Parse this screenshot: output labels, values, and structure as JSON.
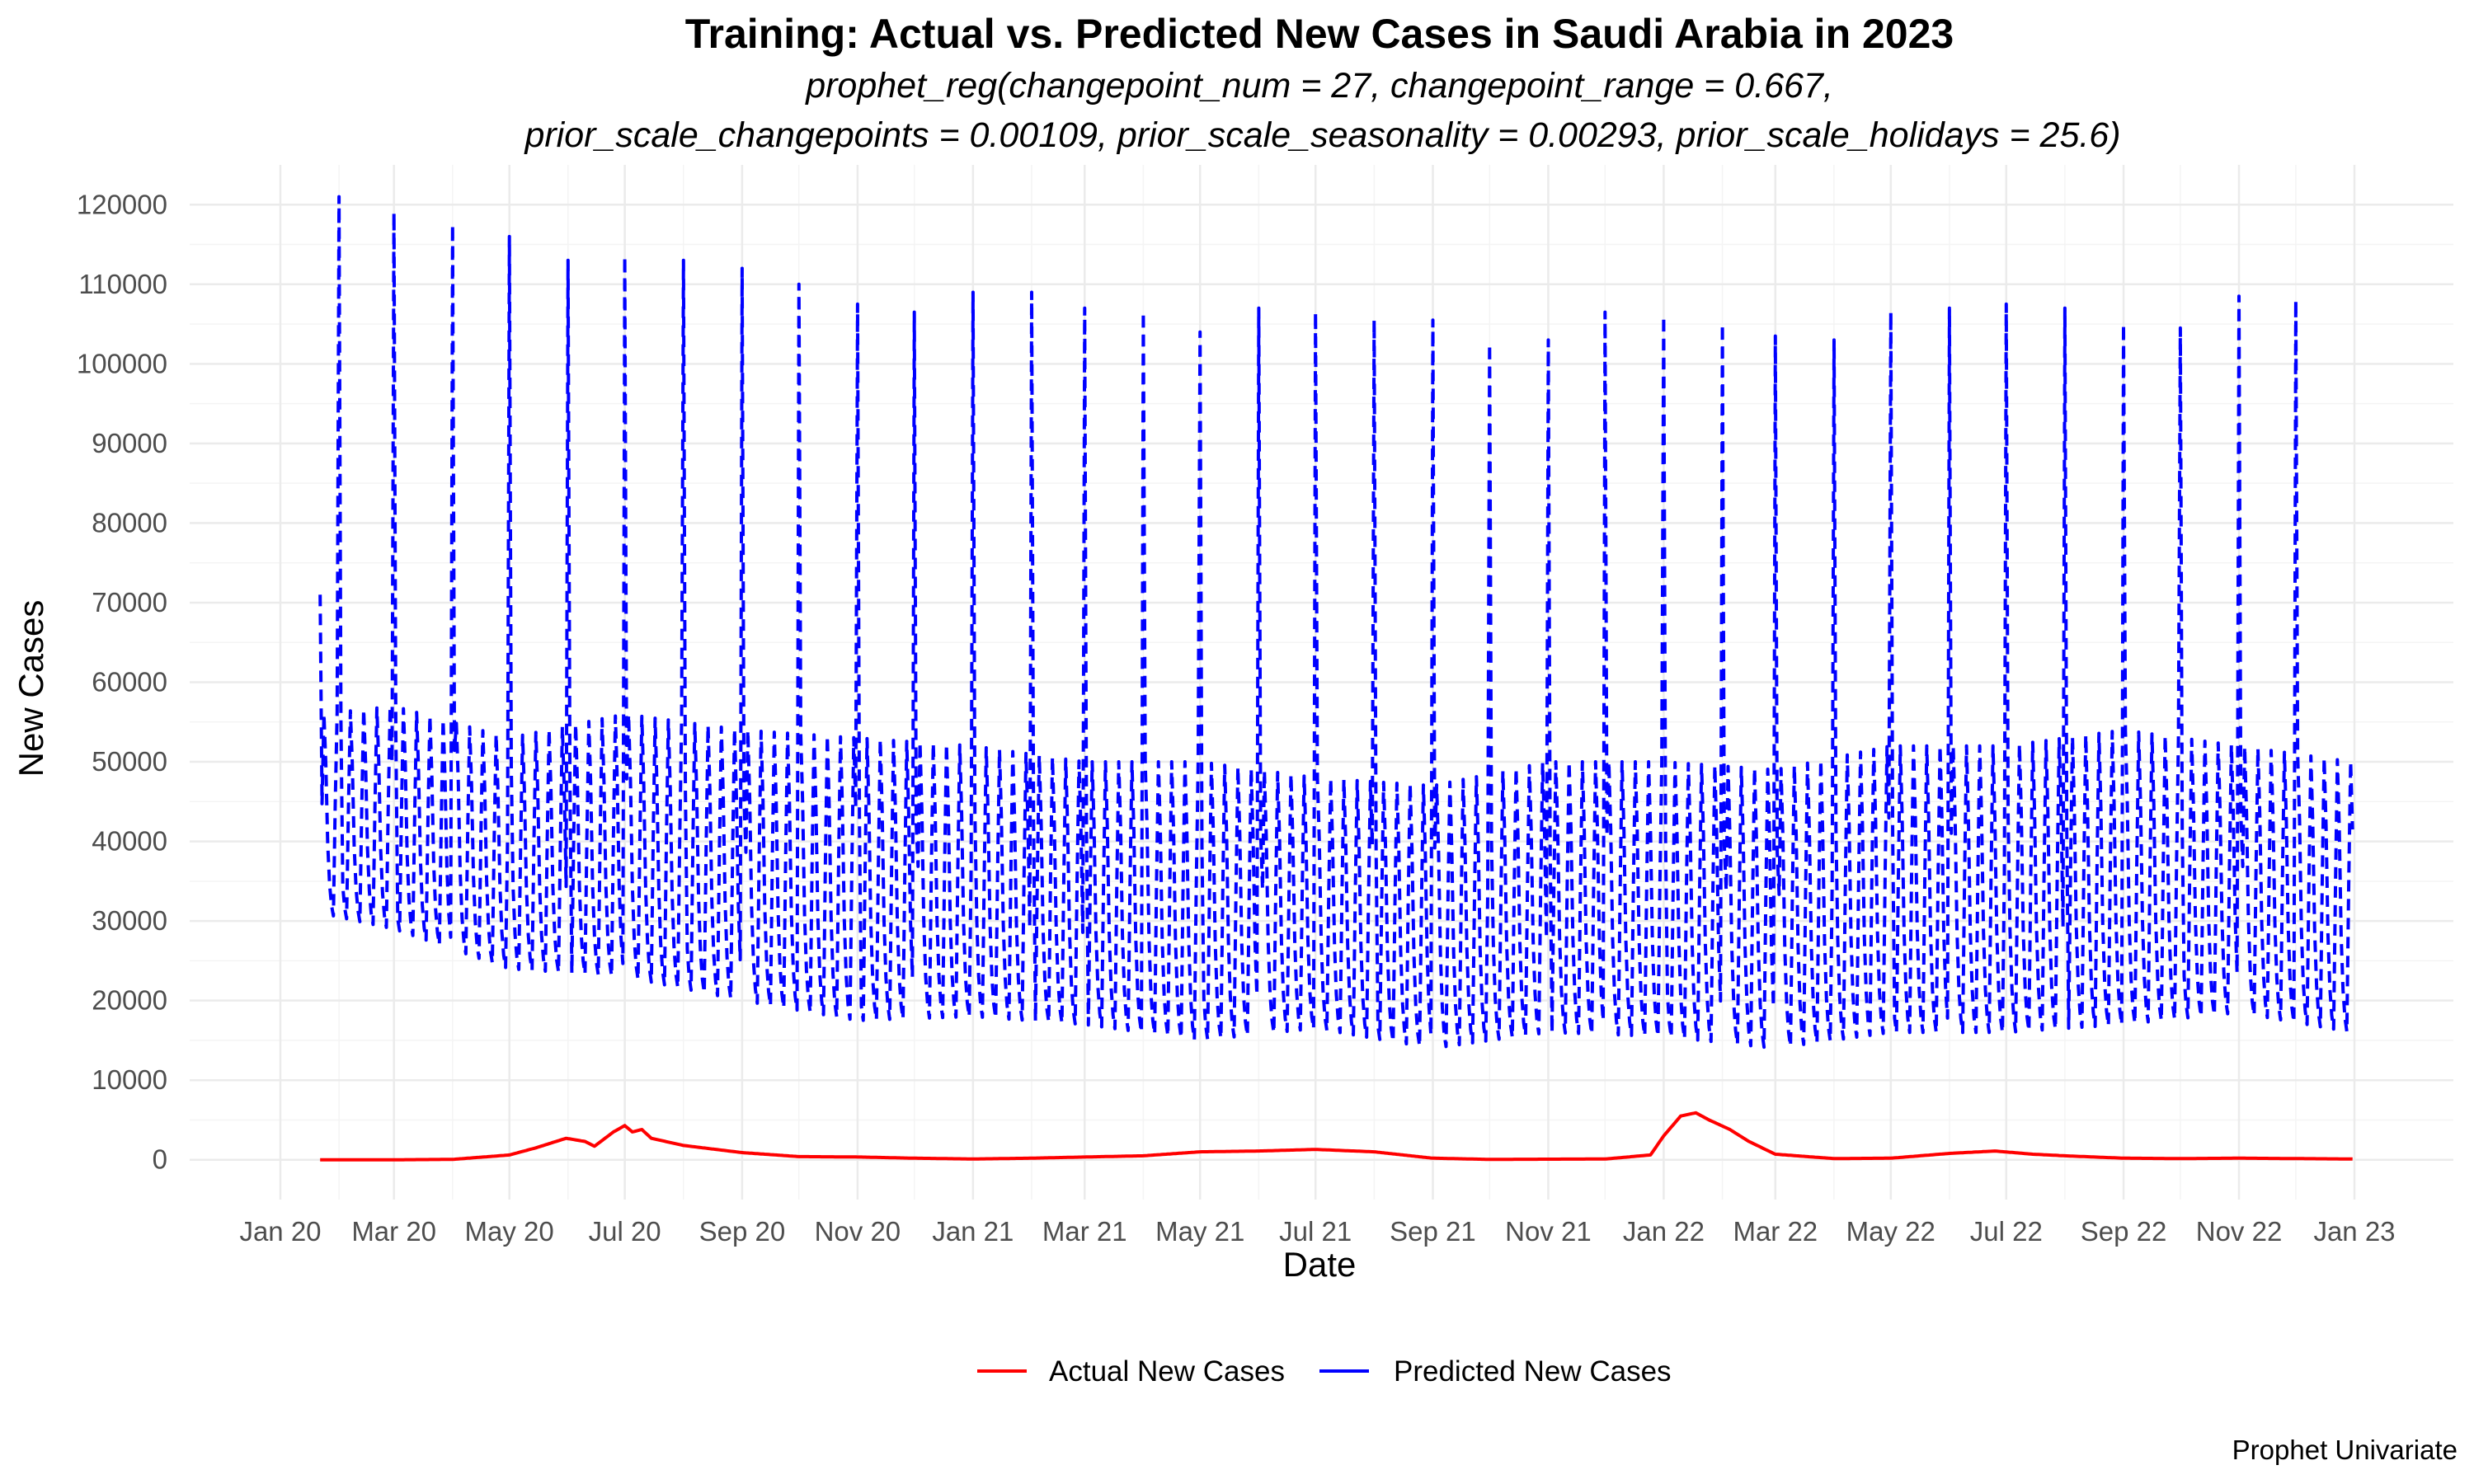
{
  "chart_data": {
    "type": "line",
    "title": "Training: Actual vs. Predicted New Cases in Saudi Arabia in 2023",
    "subtitle_lines": [
      "prophet_reg(changepoint_num = 27, changepoint_range = 0.667,",
      "prior_scale_changepoints = 0.00109, prior_scale_seasonality = 0.00293, prior_scale_holidays = 25.6)"
    ],
    "xlabel": "Date",
    "ylabel": "New Cases",
    "caption": "Prophet Univariate",
    "x_ticks": [
      "Jan 20",
      "Mar 20",
      "May 20",
      "Jul 20",
      "Sep 20",
      "Nov 20",
      "Jan 21",
      "Mar 21",
      "May 21",
      "Jul 21",
      "Sep 21",
      "Nov 21",
      "Jan 22",
      "Mar 22",
      "May 22",
      "Jul 22",
      "Sep 22",
      "Nov 22",
      "Jan 23"
    ],
    "y_ticks": [
      "0",
      "10000",
      "20000",
      "30000",
      "40000",
      "50000",
      "60000",
      "70000",
      "80000",
      "90000",
      "100000",
      "110000",
      "120000"
    ],
    "ylim": [
      -5000,
      125000
    ],
    "grid": true,
    "legend_position": "bottom",
    "series": [
      {
        "name": "Actual New Cases",
        "color": "#ff0000",
        "linestyle": "solid",
        "points": [
          [
            "2020-01-22",
            0
          ],
          [
            "2020-03-01",
            0
          ],
          [
            "2020-04-01",
            50
          ],
          [
            "2020-05-01",
            600
          ],
          [
            "2020-05-15",
            1500
          ],
          [
            "2020-05-31",
            2700
          ],
          [
            "2020-06-10",
            2300
          ],
          [
            "2020-06-15",
            1700
          ],
          [
            "2020-06-25",
            3500
          ],
          [
            "2020-07-01",
            4300
          ],
          [
            "2020-07-05",
            3500
          ],
          [
            "2020-07-10",
            3800
          ],
          [
            "2020-07-15",
            2700
          ],
          [
            "2020-08-01",
            1800
          ],
          [
            "2020-09-01",
            900
          ],
          [
            "2020-10-01",
            400
          ],
          [
            "2020-11-01",
            350
          ],
          [
            "2020-12-01",
            200
          ],
          [
            "2021-01-01",
            100
          ],
          [
            "2021-02-01",
            200
          ],
          [
            "2021-03-01",
            350
          ],
          [
            "2021-04-01",
            500
          ],
          [
            "2021-05-01",
            1000
          ],
          [
            "2021-06-01",
            1100
          ],
          [
            "2021-07-01",
            1300
          ],
          [
            "2021-08-01",
            1000
          ],
          [
            "2021-09-01",
            200
          ],
          [
            "2021-10-01",
            50
          ],
          [
            "2021-12-01",
            100
          ],
          [
            "2021-12-25",
            600
          ],
          [
            "2022-01-01",
            3000
          ],
          [
            "2022-01-10",
            5500
          ],
          [
            "2022-01-18",
            5900
          ],
          [
            "2022-01-25",
            5000
          ],
          [
            "2022-02-05",
            3800
          ],
          [
            "2022-02-15",
            2300
          ],
          [
            "2022-03-01",
            700
          ],
          [
            "2022-04-01",
            150
          ],
          [
            "2022-05-01",
            200
          ],
          [
            "2022-06-01",
            800
          ],
          [
            "2022-06-25",
            1100
          ],
          [
            "2022-07-15",
            700
          ],
          [
            "2022-08-01",
            500
          ],
          [
            "2022-09-01",
            200
          ],
          [
            "2022-10-01",
            150
          ],
          [
            "2022-11-01",
            200
          ],
          [
            "2022-12-01",
            150
          ],
          [
            "2022-12-31",
            100
          ]
        ]
      },
      {
        "name": "Predicted New Cases",
        "color": "#0000ff",
        "linestyle": "dashed",
        "weekly_trough": [
          [
            "2020-01-22",
            31000
          ],
          [
            "2020-03-01",
            29000
          ],
          [
            "2020-05-01",
            24000
          ],
          [
            "2020-07-01",
            23000
          ],
          [
            "2020-09-01",
            20000
          ],
          [
            "2020-11-01",
            17500
          ],
          [
            "2021-01-01",
            18000
          ],
          [
            "2021-03-01",
            17000
          ],
          [
            "2021-05-01",
            15000
          ],
          [
            "2021-07-01",
            16500
          ],
          [
            "2021-09-01",
            14000
          ],
          [
            "2021-11-01",
            16000
          ],
          [
            "2022-01-01",
            15500
          ],
          [
            "2022-03-01",
            14000
          ],
          [
            "2022-05-01",
            16000
          ],
          [
            "2022-07-01",
            16000
          ],
          [
            "2022-09-01",
            17000
          ],
          [
            "2022-11-01",
            18500
          ],
          [
            "2022-12-31",
            16000
          ]
        ],
        "weekly_peak": [
          [
            "2020-01-22",
            56000
          ],
          [
            "2020-03-01",
            57000
          ],
          [
            "2020-05-01",
            53000
          ],
          [
            "2020-07-01",
            56000
          ],
          [
            "2020-09-01",
            54000
          ],
          [
            "2020-11-01",
            53000
          ],
          [
            "2021-01-01",
            52000
          ],
          [
            "2021-03-01",
            50000
          ],
          [
            "2021-05-01",
            50000
          ],
          [
            "2021-07-01",
            48000
          ],
          [
            "2021-09-01",
            47000
          ],
          [
            "2021-11-01",
            50000
          ],
          [
            "2022-01-01",
            50000
          ],
          [
            "2022-03-01",
            49000
          ],
          [
            "2022-05-01",
            52000
          ],
          [
            "2022-07-01",
            52000
          ],
          [
            "2022-09-01",
            54000
          ],
          [
            "2022-11-01",
            52000
          ],
          [
            "2022-12-31",
            50000
          ]
        ],
        "monthly_spikes": [
          [
            "2020-02-01",
            121000
          ],
          [
            "2020-03-01",
            119000
          ],
          [
            "2020-04-01",
            117500
          ],
          [
            "2020-05-01",
            116000
          ],
          [
            "2020-06-01",
            113000
          ],
          [
            "2020-07-01",
            113500
          ],
          [
            "2020-08-01",
            113000
          ],
          [
            "2020-09-01",
            112000
          ],
          [
            "2020-10-01",
            110000
          ],
          [
            "2020-11-01",
            107500
          ],
          [
            "2020-12-01",
            106500
          ],
          [
            "2021-01-01",
            109000
          ],
          [
            "2021-02-01",
            109000
          ],
          [
            "2021-03-01",
            107000
          ],
          [
            "2021-04-01",
            106500
          ],
          [
            "2021-05-01",
            104000
          ],
          [
            "2021-06-01",
            107000
          ],
          [
            "2021-07-01",
            106500
          ],
          [
            "2021-08-01",
            105500
          ],
          [
            "2021-09-01",
            105500
          ],
          [
            "2021-10-01",
            102500
          ],
          [
            "2021-11-01",
            103000
          ],
          [
            "2021-12-01",
            106500
          ],
          [
            "2022-01-01",
            106000
          ],
          [
            "2022-02-01",
            105000
          ],
          [
            "2022-03-01",
            103500
          ],
          [
            "2022-04-01",
            103000
          ],
          [
            "2022-05-01",
            106500
          ],
          [
            "2022-06-01",
            107000
          ],
          [
            "2022-07-01",
            107500
          ],
          [
            "2022-08-01",
            107000
          ],
          [
            "2022-09-01",
            105000
          ],
          [
            "2022-10-01",
            104500
          ],
          [
            "2022-11-01",
            108500
          ],
          [
            "2022-12-01",
            108000
          ]
        ]
      }
    ]
  }
}
